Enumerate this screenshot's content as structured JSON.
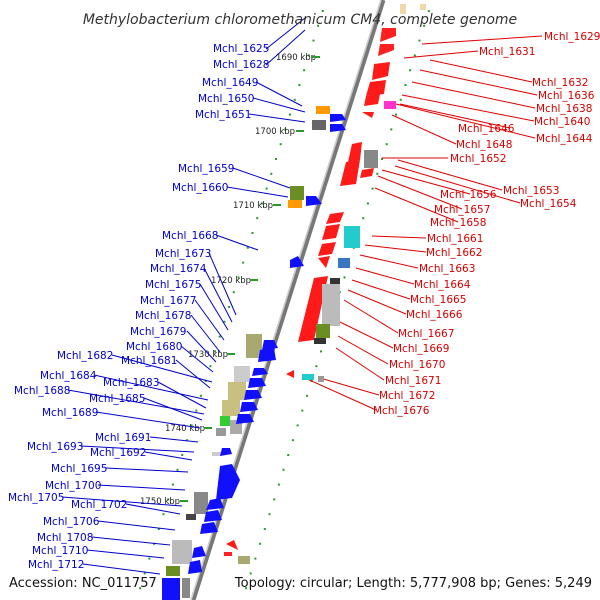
{
  "title": "Methylobacterium chloromethanicum CM4, complete genome",
  "accession": "Accession: NC_011757",
  "topology": "Topology: circular; Length: 5,777,908 bp; Genes: 5,249",
  "colors": {
    "left_labels": "#0000cc",
    "right_labels": "#d40000",
    "backbone": "#888888",
    "tick": "#2a9a2a"
  },
  "kbp_labels": [
    "1690 kbp",
    "1700 kbp",
    "1710 kbp",
    "1720 kbp",
    "1730 kbp",
    "1740 kbp",
    "1750 kbp"
  ],
  "left_genes": [
    "Mchl_1625",
    "Mchl_1628",
    "Mchl_1649",
    "Mchl_1650",
    "Mchl_1651",
    "Mchl_1659",
    "Mchl_1660",
    "Mchl_1668",
    "Mchl_1673",
    "Mchl_1674",
    "Mchl_1675",
    "Mchl_1677",
    "Mchl_1678",
    "Mchl_1679",
    "Mchl_1680",
    "Mchl_1682",
    "Mchl_1681",
    "Mchl_1684",
    "Mchl_1683",
    "Mchl_1688",
    "Mchl_1685",
    "Mchl_1689",
    "Mchl_1691",
    "Mchl_1693",
    "Mchl_1692",
    "Mchl_1695",
    "Mchl_1700",
    "Mchl_1705",
    "Mchl_1702",
    "Mchl_1706",
    "Mchl_1708",
    "Mchl_1710",
    "Mchl_1712"
  ],
  "right_genes": [
    "Mchl_1629",
    "Mchl_1631",
    "Mchl_1632",
    "Mchl_1636",
    "Mchl_1638",
    "Mchl_1640",
    "Mchl_1644",
    "Mchl_1646",
    "Mchl_1648",
    "Mchl_1652",
    "Mchl_1653",
    "Mchl_1654",
    "Mchl_1656",
    "Mchl_1657",
    "Mchl_1658",
    "Mchl_1661",
    "Mchl_1662",
    "Mchl_1663",
    "Mchl_1664",
    "Mchl_1665",
    "Mchl_1666",
    "Mchl_1667",
    "Mchl_1669",
    "Mchl_1670",
    "Mchl_1671",
    "Mchl_1672",
    "Mchl_1676"
  ]
}
